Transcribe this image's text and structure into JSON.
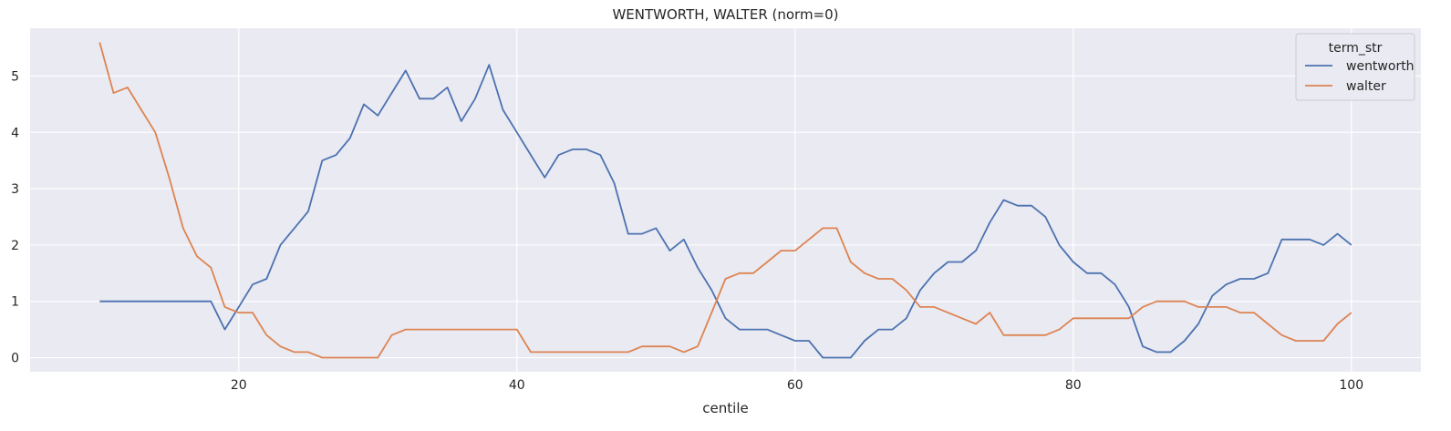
{
  "chart_data": {
    "type": "line",
    "title": "WENTWORTH, WALTER (norm=0)",
    "xlabel": "centile",
    "ylabel": "",
    "xlim": [
      5,
      105
    ],
    "ylim": [
      -0.25,
      5.85
    ],
    "xticks": [
      20,
      40,
      60,
      80,
      100
    ],
    "yticks": [
      0,
      1,
      2,
      3,
      4,
      5
    ],
    "grid": true,
    "legend": {
      "title": "term_str",
      "placement": "top-right"
    },
    "x": [
      10,
      11,
      12,
      13,
      14,
      15,
      16,
      17,
      18,
      19,
      20,
      21,
      22,
      23,
      24,
      25,
      26,
      27,
      28,
      29,
      30,
      31,
      32,
      33,
      34,
      35,
      36,
      37,
      38,
      39,
      40,
      41,
      42,
      43,
      44,
      45,
      46,
      47,
      48,
      49,
      50,
      51,
      52,
      53,
      54,
      55,
      56,
      57,
      58,
      59,
      60,
      61,
      62,
      63,
      64,
      65,
      66,
      67,
      68,
      69,
      70,
      71,
      72,
      73,
      74,
      75,
      76,
      77,
      78,
      79,
      80,
      81,
      82,
      83,
      84,
      85,
      86,
      87,
      88,
      89,
      90,
      91,
      92,
      93,
      94,
      95,
      96,
      97,
      98,
      99,
      100
    ],
    "series": [
      {
        "name": "wentworth",
        "color": "#4c72b0",
        "values": [
          1,
          1,
          1,
          1,
          1,
          1,
          1,
          1,
          1,
          0.5,
          0.9,
          1.3,
          1.4,
          2.0,
          2.3,
          2.6,
          3.5,
          3.6,
          3.9,
          4.5,
          4.3,
          4.7,
          5.1,
          4.6,
          4.6,
          4.8,
          4.2,
          4.6,
          5.2,
          4.4,
          4.0,
          3.6,
          3.2,
          3.6,
          3.7,
          3.7,
          3.6,
          3.1,
          2.2,
          2.2,
          2.3,
          1.9,
          2.1,
          1.6,
          1.2,
          0.7,
          0.5,
          0.5,
          0.5,
          0.4,
          0.3,
          0.3,
          0.0,
          0.0,
          0.0,
          0.3,
          0.5,
          0.5,
          0.7,
          1.2,
          1.5,
          1.7,
          1.7,
          1.9,
          2.4,
          2.8,
          2.7,
          2.7,
          2.5,
          2.0,
          1.7,
          1.5,
          1.5,
          1.3,
          0.9,
          0.2,
          0.1,
          0.1,
          0.3,
          0.6,
          1.1,
          1.3,
          1.4,
          1.4,
          1.5,
          2.1,
          2.1,
          2.1,
          2.0,
          2.2,
          2.0
        ]
      },
      {
        "name": "walter",
        "color": "#dd8452",
        "values": [
          5.6,
          4.7,
          4.8,
          4.4,
          4.0,
          3.2,
          2.3,
          1.8,
          1.6,
          0.9,
          0.8,
          0.8,
          0.4,
          0.2,
          0.1,
          0.1,
          0.0,
          0.0,
          0.0,
          0.0,
          0.0,
          0.4,
          0.5,
          0.5,
          0.5,
          0.5,
          0.5,
          0.5,
          0.5,
          0.5,
          0.5,
          0.1,
          0.1,
          0.1,
          0.1,
          0.1,
          0.1,
          0.1,
          0.1,
          0.2,
          0.2,
          0.2,
          0.1,
          0.2,
          0.8,
          1.4,
          1.5,
          1.5,
          1.7,
          1.9,
          1.9,
          2.1,
          2.3,
          2.3,
          1.7,
          1.5,
          1.4,
          1.4,
          1.2,
          0.9,
          0.9,
          0.8,
          0.7,
          0.6,
          0.8,
          0.4,
          0.4,
          0.4,
          0.4,
          0.5,
          0.7,
          0.7,
          0.7,
          0.7,
          0.7,
          0.9,
          1.0,
          1.0,
          1.0,
          0.9,
          0.9,
          0.9,
          0.8,
          0.8,
          0.6,
          0.4,
          0.3,
          0.3,
          0.3,
          0.6,
          0.8
        ]
      }
    ]
  }
}
